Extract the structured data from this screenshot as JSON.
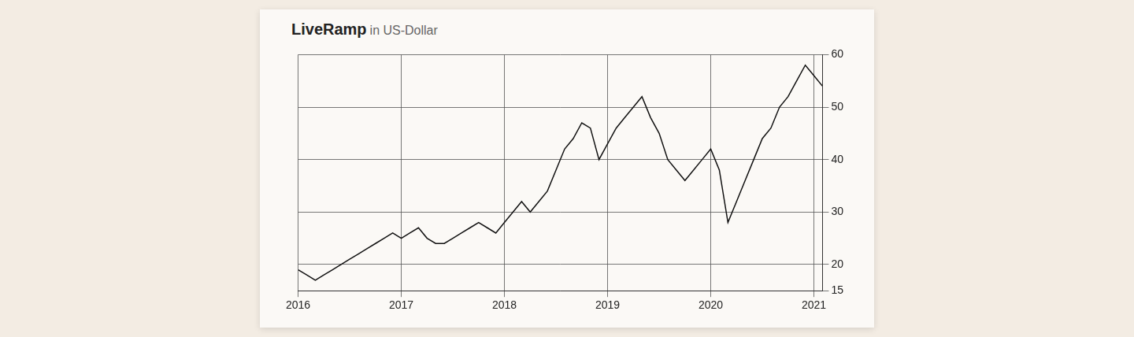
{
  "chart_data": {
    "type": "line",
    "title": "LiveRamp",
    "subtitle": "in US-Dollar",
    "categories": [
      "2016",
      null,
      null,
      null,
      null,
      null,
      null,
      null,
      null,
      null,
      null,
      null,
      "2017",
      null,
      null,
      null,
      null,
      null,
      null,
      null,
      null,
      null,
      null,
      null,
      "2018",
      null,
      null,
      null,
      null,
      null,
      null,
      null,
      null,
      null,
      null,
      null,
      "2019",
      null,
      null,
      null,
      null,
      null,
      null,
      null,
      null,
      null,
      null,
      null,
      "2020",
      null,
      null,
      null,
      null,
      null,
      null,
      null,
      null,
      null,
      null,
      null,
      "2021",
      null
    ],
    "values": [
      19,
      18,
      17,
      18,
      19,
      20,
      21,
      22,
      23,
      24,
      25,
      26,
      25,
      26,
      27,
      25,
      24,
      24,
      25,
      26,
      27,
      28,
      27,
      26,
      28,
      30,
      32,
      30,
      32,
      34,
      38,
      42,
      44,
      47,
      46,
      40,
      43,
      46,
      48,
      50,
      52,
      48,
      45,
      40,
      38,
      36,
      38,
      40,
      42,
      38,
      28,
      32,
      36,
      40,
      44,
      46,
      50,
      52,
      55,
      58,
      56,
      54
    ],
    "color": "#111111",
    "ylim": [
      15,
      60
    ],
    "yticks": [
      15,
      20,
      30,
      40,
      50,
      60
    ],
    "grid": true
  }
}
